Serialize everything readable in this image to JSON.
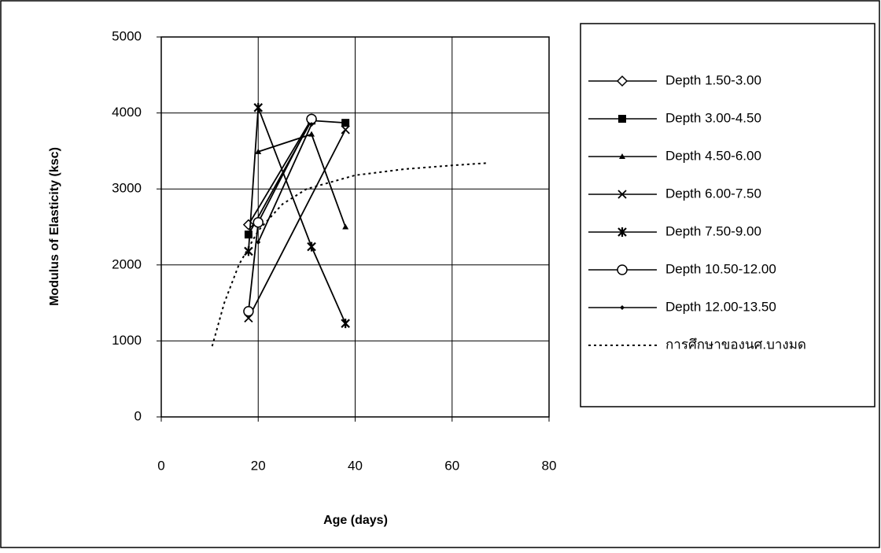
{
  "chart_data": {
    "type": "line",
    "x_label": "Age (days)",
    "y_label": "Modulus of Elasticity (ksc)",
    "xlim": [
      0,
      80
    ],
    "xticks": [
      0,
      20,
      40,
      60,
      80
    ],
    "ylim": [
      0,
      5000
    ],
    "yticks": [
      0,
      1000,
      2000,
      3000,
      4000,
      5000
    ],
    "grid": true,
    "legend": "right",
    "series": [
      {
        "name": "Depth 1.50-3.00",
        "color": "#000000",
        "marker": "diamond-open",
        "x": [
          18,
          31
        ],
        "values": [
          2530,
          3920
        ]
      },
      {
        "name": "Depth 3.00-4.50",
        "color": "#000000",
        "marker": "square",
        "x": [
          18,
          31,
          38
        ],
        "values": [
          2400,
          3900,
          3870
        ]
      },
      {
        "name": "Depth 4.50-6.00",
        "color": "#000000",
        "marker": "triangle",
        "x": [
          20,
          31,
          38
        ],
        "values": [
          3490,
          3720,
          2500
        ]
      },
      {
        "name": "Depth 6.00-7.50",
        "color": "#000000",
        "marker": "x",
        "x": [
          18,
          38
        ],
        "values": [
          1300,
          3780
        ]
      },
      {
        "name": "Depth 7.50-9.00",
        "color": "#000000",
        "marker": "asterisk",
        "x": [
          18,
          20,
          31,
          38
        ],
        "values": [
          2180,
          4070,
          2240,
          1230
        ]
      },
      {
        "name": "Depth 10.50-12.00",
        "color": "#000000",
        "marker": "circle-open",
        "x": [
          18,
          20,
          31
        ],
        "values": [
          1390,
          2560,
          3920
        ]
      },
      {
        "name": "Depth 12.00-13.50",
        "color": "#000000",
        "marker": "diamond-small",
        "x": [
          20,
          31
        ],
        "values": [
          2300,
          3850
        ]
      },
      {
        "name": "การศึกษาของนศ.บางมด",
        "color": "#000000",
        "marker": "none",
        "dash": true,
        "x": [
          10.5,
          13,
          16,
          20,
          25,
          30,
          40,
          50,
          60,
          67
        ],
        "values": [
          930,
          1500,
          2000,
          2450,
          2800,
          3000,
          3180,
          3260,
          3310,
          3340
        ]
      }
    ]
  }
}
